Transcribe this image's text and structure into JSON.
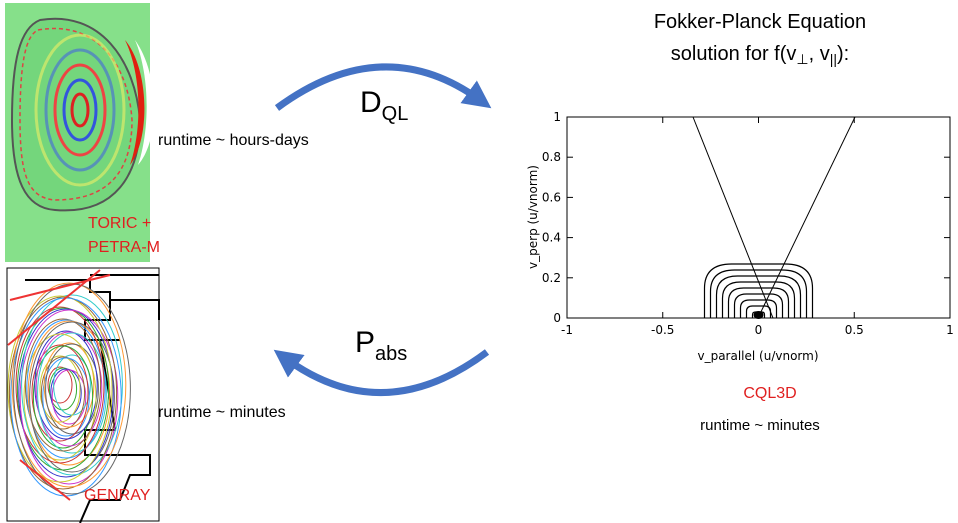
{
  "heading": {
    "line1": "Fokker-Planck Equation",
    "line2": [
      "solution for f(v",
      "⊥",
      ", v",
      "||",
      "):"
    ]
  },
  "arrows": {
    "top": {
      "main": "D",
      "sub": "QL"
    },
    "bottom": {
      "main": "P",
      "sub": "abs"
    }
  },
  "toric": {
    "runtime": "runtime ~ hours-days",
    "label": [
      "TORIC +",
      "PETRA-M"
    ]
  },
  "genray": {
    "runtime": "runtime ~ minutes",
    "label": "GENRAY"
  },
  "cql3d": {
    "label": "CQL3D",
    "runtime": "runtime ~ minutes",
    "plot": {
      "xlabel": "v_parallel  (u/vnorm)",
      "ylabel": "v_perp  (u/vnorm)",
      "xlim": [
        -1,
        1
      ],
      "ylim": [
        0,
        1
      ],
      "xticks": [
        -1,
        -0.5,
        0,
        0.5,
        1
      ],
      "yticks": [
        0,
        0.2,
        0.4,
        0.6,
        0.8,
        1
      ]
    }
  }
}
